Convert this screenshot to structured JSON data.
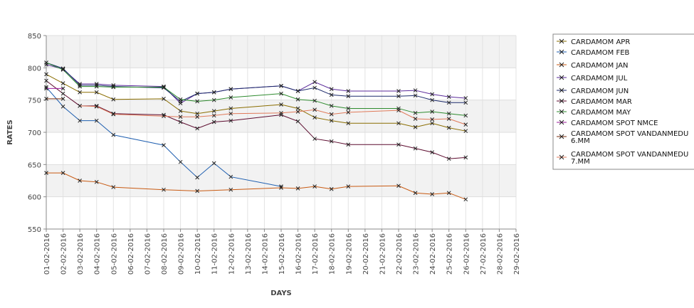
{
  "chart_data": {
    "type": "line",
    "xlabel": "DAYS",
    "ylabel": "RATES",
    "ylim": [
      550,
      850
    ],
    "yticks": [
      550,
      600,
      650,
      700,
      750,
      800,
      850
    ],
    "x_tick_labels": [
      "01-02-2016",
      "02-02-2016",
      "03-02-2016",
      "04-02-2016",
      "05-02-2016",
      "06-02-2016",
      "07-02-2016",
      "08-02-2016",
      "09-02-2016",
      "10-02-2016",
      "11-02-2016",
      "12-02-2016",
      "13-02-2016",
      "14-02-2016",
      "15-02-2016",
      "16-02-2016",
      "17-02-2016",
      "18-02-2016",
      "19-02-2016",
      "20-02-2016",
      "21-02-2016",
      "22-02-2016",
      "23-02-2016",
      "24-02-2016",
      "25-02-2016",
      "26-02-2016",
      "27-02-2016",
      "28-02-2016",
      "29-02-2016"
    ],
    "grid": true,
    "legend_position": "right",
    "series": [
      {
        "name": "CARDAMOM APR",
        "color": "#8a6d00",
        "x": [
          "01-02-2016",
          "02-02-2016",
          "03-02-2016",
          "04-02-2016",
          "05-02-2016",
          "08-02-2016",
          "09-02-2016",
          "10-02-2016",
          "11-02-2016",
          "12-02-2016",
          "15-02-2016",
          "16-02-2016",
          "17-02-2016",
          "18-02-2016",
          "19-02-2016",
          "22-02-2016",
          "23-02-2016",
          "24-02-2016",
          "25-02-2016",
          "26-02-2016"
        ],
        "y": [
          790,
          776,
          762,
          762,
          751,
          752,
          733,
          729,
          733,
          737,
          743,
          737,
          723,
          718,
          714,
          714,
          708,
          714,
          707,
          702
        ]
      },
      {
        "name": "CARDAMOM FEB",
        "color": "#1f5fb0",
        "x": [
          "01-02-2016",
          "02-02-2016",
          "03-02-2016",
          "04-02-2016",
          "05-02-2016",
          "08-02-2016",
          "09-02-2016",
          "10-02-2016",
          "11-02-2016",
          "12-02-2016",
          "15-02-2016"
        ],
        "y": [
          770,
          740,
          718,
          718,
          696,
          680,
          654,
          630,
          652,
          631,
          616
        ]
      },
      {
        "name": "CARDAMOM JAN",
        "color": "#c85a12",
        "x": [
          "01-02-2016",
          "02-02-2016",
          "03-02-2016",
          "04-02-2016",
          "05-02-2016",
          "08-02-2016",
          "10-02-2016",
          "12-02-2016",
          "15-02-2016",
          "16-02-2016",
          "17-02-2016",
          "18-02-2016",
          "19-02-2016",
          "22-02-2016",
          "23-02-2016",
          "24-02-2016",
          "25-02-2016",
          "26-02-2016"
        ],
        "y": [
          637,
          637,
          625,
          623,
          615,
          611,
          609,
          611,
          614,
          613,
          616,
          612,
          616,
          617,
          606,
          604,
          606,
          596
        ]
      },
      {
        "name": "CARDAMOM JUL",
        "color": "#5a2a9a",
        "x": [
          "01-02-2016",
          "02-02-2016",
          "03-02-2016",
          "04-02-2016",
          "05-02-2016",
          "08-02-2016",
          "09-02-2016",
          "10-02-2016",
          "11-02-2016",
          "12-02-2016",
          "15-02-2016",
          "16-02-2016",
          "17-02-2016",
          "18-02-2016",
          "19-02-2016",
          "22-02-2016",
          "23-02-2016",
          "24-02-2016",
          "25-02-2016",
          "26-02-2016"
        ],
        "y": [
          805,
          798,
          775,
          775,
          773,
          771,
          745,
          760,
          762,
          767,
          772,
          764,
          778,
          767,
          764,
          764,
          765,
          759,
          755,
          753
        ]
      },
      {
        "name": "CARDAMOM JUN",
        "color": "#1c2a6b",
        "x": [
          "01-02-2016",
          "02-02-2016",
          "03-02-2016",
          "04-02-2016",
          "05-02-2016",
          "08-02-2016",
          "09-02-2016",
          "10-02-2016",
          "11-02-2016",
          "12-02-2016",
          "15-02-2016",
          "16-02-2016",
          "17-02-2016",
          "18-02-2016",
          "19-02-2016",
          "22-02-2016",
          "23-02-2016",
          "24-02-2016",
          "25-02-2016",
          "26-02-2016"
        ],
        "y": [
          808,
          799,
          773,
          773,
          771,
          769,
          748,
          760,
          762,
          767,
          772,
          764,
          769,
          758,
          756,
          756,
          757,
          750,
          746,
          746
        ]
      },
      {
        "name": "CARDAMOM MAR",
        "color": "#5c0b2e",
        "x": [
          "01-02-2016",
          "02-02-2016",
          "03-02-2016",
          "04-02-2016",
          "05-02-2016",
          "08-02-2016",
          "09-02-2016",
          "10-02-2016",
          "11-02-2016",
          "12-02-2016",
          "15-02-2016",
          "16-02-2016",
          "17-02-2016",
          "18-02-2016",
          "19-02-2016",
          "22-02-2016",
          "23-02-2016",
          "24-02-2016",
          "25-02-2016",
          "26-02-2016"
        ],
        "y": [
          780,
          760,
          741,
          741,
          729,
          727,
          716,
          706,
          716,
          718,
          727,
          717,
          690,
          686,
          681,
          681,
          675,
          669,
          659,
          661
        ]
      },
      {
        "name": "CARDAMOM MAY",
        "color": "#2e8b2e",
        "x": [
          "01-02-2016",
          "02-02-2016",
          "03-02-2016",
          "04-02-2016",
          "05-02-2016",
          "08-02-2016",
          "09-02-2016",
          "10-02-2016",
          "11-02-2016",
          "12-02-2016",
          "15-02-2016",
          "16-02-2016",
          "17-02-2016",
          "18-02-2016",
          "19-02-2016",
          "22-02-2016",
          "23-02-2016",
          "24-02-2016",
          "25-02-2016",
          "26-02-2016"
        ],
        "y": [
          808,
          797,
          771,
          771,
          770,
          770,
          751,
          748,
          750,
          754,
          760,
          751,
          749,
          741,
          737,
          737,
          730,
          732,
          729,
          726
        ]
      },
      {
        "name": "CARDAMOM SPOT NMCE",
        "color": "#9b1b9b",
        "x": [
          "01-02-2016",
          "02-02-2016"
        ],
        "y": [
          768,
          768
        ]
      },
      {
        "name": "CARDAMOM SPOT VANDANMEDU 6.MM",
        "color": "#7a2e0e",
        "x": [
          "01-02-2016",
          "02-02-2016"
        ],
        "y": [
          752,
          752
        ]
      },
      {
        "name": "CARDAMOM SPOT VANDANMEDU 7.MM",
        "color": "#e07a5a",
        "x": [
          "03-02-2016",
          "04-02-2016",
          "05-02-2016",
          "08-02-2016",
          "09-02-2016",
          "10-02-2016",
          "11-02-2016",
          "12-02-2016",
          "15-02-2016",
          "16-02-2016",
          "17-02-2016",
          "18-02-2016",
          "19-02-2016",
          "22-02-2016",
          "23-02-2016",
          "24-02-2016",
          "25-02-2016",
          "26-02-2016"
        ],
        "y": [
          741,
          740,
          728,
          725,
          724,
          724,
          726,
          729,
          730,
          732,
          735,
          728,
          731,
          734,
          721,
          720,
          721,
          712
        ]
      }
    ],
    "legend_lines": [
      [
        "CARDAMOM APR"
      ],
      [
        "CARDAMOM FEB"
      ],
      [
        "CARDAMOM JAN"
      ],
      [
        "CARDAMOM JUL"
      ],
      [
        "CARDAMOM JUN"
      ],
      [
        "CARDAMOM MAR"
      ],
      [
        "CARDAMOM MAY"
      ],
      [
        "CARDAMOM SPOT NMCE"
      ],
      [
        "CARDAMOM SPOT VANDANMEDU",
        "6.MM"
      ],
      [
        "CARDAMOM SPOT VANDANMEDU",
        "7.MM"
      ]
    ]
  }
}
